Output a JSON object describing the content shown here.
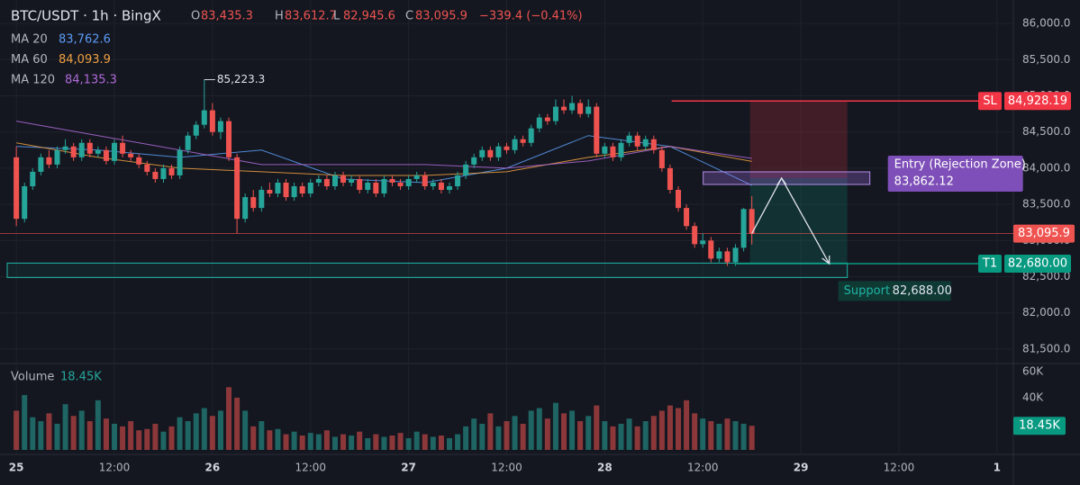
{
  "chart_data": {
    "type": "candlestick",
    "title": "BTC/USDT · 1h · BingX",
    "ohlc_keys": [
      "O",
      "H",
      "L",
      "C"
    ],
    "ohlc_labels": [
      "83,435.3",
      "83,612.7",
      "82,945.6",
      "83,095.9"
    ],
    "change_label": "−339.4 (−0.41%)",
    "up_color": "#26a69a",
    "down_color": "#ef5350",
    "ohlc": [
      [
        84150,
        84300,
        83200,
        83300
      ],
      [
        83300,
        83800,
        83250,
        83750
      ],
      [
        83750,
        84000,
        83700,
        83950
      ],
      [
        83950,
        84200,
        83900,
        84150
      ],
      [
        84150,
        84250,
        84000,
        84050
      ],
      [
        84050,
        84300,
        84000,
        84250
      ],
      [
        84250,
        84400,
        84200,
        84300
      ],
      [
        84300,
        84350,
        84100,
        84150
      ],
      [
        84150,
        84400,
        84100,
        84350
      ],
      [
        84350,
        84400,
        84150,
        84200
      ],
      [
        84200,
        84300,
        84150,
        84250
      ],
      [
        84250,
        84300,
        84050,
        84100
      ],
      [
        84100,
        84400,
        84050,
        84350
      ],
      [
        84350,
        84450,
        84150,
        84200
      ],
      [
        84200,
        84250,
        84100,
        84150
      ],
      [
        84150,
        84200,
        84000,
        84050
      ],
      [
        84050,
        84100,
        83900,
        83950
      ],
      [
        83950,
        84000,
        83800,
        83850
      ],
      [
        83850,
        84050,
        83800,
        84000
      ],
      [
        84000,
        84050,
        83850,
        83900
      ],
      [
        83900,
        84300,
        83850,
        84250
      ],
      [
        84250,
        84500,
        84200,
        84450
      ],
      [
        84450,
        84650,
        84400,
        84600
      ],
      [
        84600,
        85223.3,
        84550,
        84800
      ],
      [
        84800,
        84900,
        84450,
        84500
      ],
      [
        84500,
        84700,
        84400,
        84650
      ],
      [
        84650,
        84700,
        84100,
        84150
      ],
      [
        84150,
        84200,
        83100,
        83300
      ],
      [
        83300,
        83650,
        83250,
        83600
      ],
      [
        83600,
        83700,
        83400,
        83450
      ],
      [
        83450,
        83750,
        83400,
        83700
      ],
      [
        83700,
        83800,
        83600,
        83650
      ],
      [
        83650,
        83850,
        83600,
        83800
      ],
      [
        83800,
        83850,
        83550,
        83600
      ],
      [
        83600,
        83800,
        83550,
        83750
      ],
      [
        83750,
        83800,
        83600,
        83650
      ],
      [
        83650,
        83850,
        83600,
        83800
      ],
      [
        83800,
        83900,
        83750,
        83850
      ],
      [
        83850,
        83900,
        83700,
        83750
      ],
      [
        83750,
        83950,
        83700,
        83900
      ],
      [
        83900,
        83950,
        83750,
        83800
      ],
      [
        83800,
        83900,
        83750,
        83850
      ],
      [
        83850,
        83900,
        83650,
        83700
      ],
      [
        83700,
        83850,
        83650,
        83800
      ],
      [
        83800,
        83850,
        83600,
        83650
      ],
      [
        83650,
        83900,
        83600,
        83850
      ],
      [
        83850,
        83900,
        83750,
        83800
      ],
      [
        83800,
        83850,
        83700,
        83750
      ],
      [
        83750,
        83900,
        83700,
        83850
      ],
      [
        83850,
        83950,
        83800,
        83900
      ],
      [
        83900,
        83950,
        83700,
        83750
      ],
      [
        83750,
        83850,
        83700,
        83800
      ],
      [
        83800,
        83850,
        83650,
        83700
      ],
      [
        83700,
        83800,
        83650,
        83750
      ],
      [
        83750,
        83950,
        83700,
        83900
      ],
      [
        83900,
        84100,
        83850,
        84050
      ],
      [
        84050,
        84200,
        84000,
        84150
      ],
      [
        84150,
        84300,
        84100,
        84250
      ],
      [
        84250,
        84300,
        84100,
        84150
      ],
      [
        84150,
        84350,
        84100,
        84300
      ],
      [
        84300,
        84350,
        84200,
        84250
      ],
      [
        84250,
        84450,
        84200,
        84400
      ],
      [
        84400,
        84450,
        84300,
        84350
      ],
      [
        84350,
        84600,
        84300,
        84550
      ],
      [
        84550,
        84750,
        84500,
        84700
      ],
      [
        84700,
        84750,
        84600,
        84650
      ],
      [
        84650,
        84950,
        84600,
        84850
      ],
      [
        84850,
        84950,
        84750,
        84800
      ],
      [
        84800,
        85000,
        84750,
        84900
      ],
      [
        84900,
        84950,
        84700,
        84750
      ],
      [
        84750,
        84950,
        84700,
        84850
      ],
      [
        84850,
        84900,
        84150,
        84200
      ],
      [
        84200,
        84350,
        84150,
        84300
      ],
      [
        84300,
        84350,
        84100,
        84150
      ],
      [
        84150,
        84400,
        84100,
        84350
      ],
      [
        84350,
        84500,
        84300,
        84450
      ],
      [
        84450,
        84500,
        84250,
        84300
      ],
      [
        84300,
        84450,
        84250,
        84400
      ],
      [
        84400,
        84450,
        84200,
        84250
      ],
      [
        84250,
        84300,
        83950,
        84000
      ],
      [
        84000,
        84050,
        83650,
        83700
      ],
      [
        83700,
        83750,
        83400,
        83450
      ],
      [
        83450,
        83500,
        83150,
        83200
      ],
      [
        83200,
        83250,
        82900,
        82950
      ],
      [
        82950,
        83100,
        82900,
        83000
      ],
      [
        83000,
        83050,
        82700,
        82750
      ],
      [
        82750,
        82900,
        82700,
        82850
      ],
      [
        82850,
        82900,
        82650,
        82700
      ],
      [
        82700,
        82950,
        82650,
        82900
      ],
      [
        82900,
        83450,
        82850,
        83435.3
      ],
      [
        83435.3,
        83612.7,
        82945.6,
        83095.9
      ]
    ],
    "peak_label": "85,223.3",
    "xlim": [
      -2,
      122
    ],
    "xticks": [
      {
        "value": 0,
        "label": "25"
      },
      {
        "value": 12,
        "label": "12:00"
      },
      {
        "value": 24,
        "label": "26"
      },
      {
        "value": 36,
        "label": "12:00"
      },
      {
        "value": 48,
        "label": "27"
      },
      {
        "value": 60,
        "label": "12:00"
      },
      {
        "value": 72,
        "label": "28"
      },
      {
        "value": 84,
        "label": "12:00"
      },
      {
        "value": 96,
        "label": "29"
      },
      {
        "value": 108,
        "label": "12:00"
      },
      {
        "value": 120,
        "label": "1"
      }
    ],
    "ylim": [
      81300,
      86200
    ],
    "yticks": [
      {
        "value": 81500,
        "label": "81,500.0"
      },
      {
        "value": 82000,
        "label": "82,000.0"
      },
      {
        "value": 82500,
        "label": "82,500.0"
      },
      {
        "value": 83000,
        "label": "83,000.0"
      },
      {
        "value": 83500,
        "label": "83,500.0"
      },
      {
        "value": 84000,
        "label": "84,000.0"
      },
      {
        "value": 84500,
        "label": "84,500.0"
      },
      {
        "value": 85000,
        "label": "85,000.0"
      },
      {
        "value": 85500,
        "label": "85,500.0"
      },
      {
        "value": 86000,
        "label": "86,000.0"
      }
    ],
    "grid": true,
    "ma_lines": [
      {
        "name": "MA 20",
        "color": "#5b9cf6",
        "last_label": "83,762.6",
        "x": [
          0,
          10,
          20,
          30,
          40,
          50,
          60,
          70,
          80,
          90
        ],
        "values": [
          84300,
          84250,
          84150,
          84250,
          83850,
          83800,
          84000,
          84450,
          84300,
          83762.6
        ]
      },
      {
        "name": "MA 60",
        "color": "#f0a040",
        "last_label": "84,093.9",
        "x": [
          0,
          10,
          20,
          30,
          40,
          50,
          60,
          70,
          80,
          90
        ],
        "values": [
          84350,
          84150,
          84000,
          83950,
          83900,
          83900,
          83950,
          84150,
          84300,
          84093.9
        ]
      },
      {
        "name": "MA 120",
        "color": "#b06ad8",
        "last_label": "84,135.3",
        "x": [
          0,
          10,
          20,
          30,
          40,
          50,
          60,
          70,
          80,
          90
        ],
        "values": [
          84650,
          84450,
          84250,
          84050,
          84050,
          84050,
          84000,
          84100,
          84300,
          84135.3
        ]
      }
    ],
    "levels": {
      "sl": {
        "name": "SL",
        "value": 84928.19,
        "label": "84,928.19",
        "color": "#f23645"
      },
      "entry": {
        "name": "Entry (Rejection Zone)",
        "value": 83862.12,
        "label": "83,862.12",
        "color": "#7e4fb8"
      },
      "t1": {
        "name": "T1",
        "value": 82680,
        "label": "82,680.00",
        "color": "#089981"
      },
      "support": {
        "name": "Support",
        "value": 82688,
        "label": "82,688.00",
        "color": "#1fb5a5"
      }
    },
    "volume_name": "Volume",
    "volume": [
      30000,
      42000,
      25000,
      22000,
      28000,
      20000,
      35000,
      26000,
      30000,
      22000,
      38000,
      24000,
      20000,
      18000,
      22000,
      15000,
      16000,
      20000,
      14000,
      18000,
      25000,
      22000,
      28000,
      32000,
      26000,
      30000,
      48000,
      40000,
      30000,
      18000,
      22000,
      15000,
      16000,
      12000,
      14000,
      11000,
      13000,
      12000,
      15000,
      10000,
      12000,
      11000,
      14000,
      9000,
      12000,
      10000,
      11000,
      13000,
      9000,
      14000,
      12000,
      10000,
      11000,
      9000,
      12000,
      18000,
      24000,
      20000,
      28000,
      18000,
      22000,
      26000,
      20000,
      30000,
      32000,
      24000,
      36000,
      28000,
      30000,
      22000,
      26000,
      34000,
      22000,
      18000,
      20000,
      24000,
      18000,
      22000,
      26000,
      30000,
      34000,
      32000,
      38000,
      28000,
      24000,
      22000,
      20000,
      24000,
      22000,
      20000,
      18450
    ],
    "volume_label": "18.45K",
    "vlim": [
      0,
      62000
    ],
    "vticks": [
      {
        "value": 40000,
        "label": "40K"
      },
      {
        "value": 60000,
        "label": "60K"
      }
    ]
  }
}
